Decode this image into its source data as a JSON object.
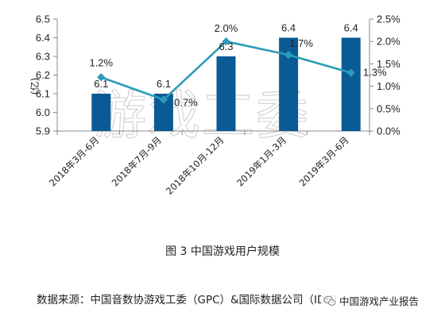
{
  "chart_data": {
    "type": "bar+line",
    "categories": [
      "2018年3月-6月",
      "2018年7月-9月",
      "2018年10月-12月",
      "2019年1月-3月",
      "2019年3月-6月"
    ],
    "series": [
      {
        "values": [
          6.1,
          6.1,
          6.3,
          6.4,
          6.4
        ],
        "type": "bar",
        "axis": "left",
        "color": "#0a5a96"
      },
      {
        "values": [
          1.2,
          0.7,
          2.0,
          1.7,
          1.3
        ],
        "type": "line",
        "axis": "right",
        "unit": "%",
        "color": "#2a9cb8"
      }
    ],
    "bar_labels": [
      "6.1",
      "6.1",
      "6.3",
      "6.4",
      "6.4"
    ],
    "line_labels": [
      "1.2%",
      "0.7%",
      "2.0%",
      "1.7%",
      "1.3%"
    ],
    "y_left": {
      "label": "(亿)",
      "ylim": [
        5.9,
        6.5
      ],
      "ticks": [
        "5.9",
        "6.0",
        "6.1",
        "6.2",
        "6.3",
        "6.4",
        "6.5"
      ]
    },
    "y_right": {
      "ylim": [
        0.0,
        2.5
      ],
      "ticks": [
        "0.0%",
        "0.5%",
        "1.0%",
        "1.5%",
        "2.0%",
        "2.5%"
      ]
    },
    "grid": false,
    "legend": "none"
  },
  "watermark": "游戏工委",
  "caption": "图 3  中国游戏用户规模",
  "source": "数据来源：中国音数协游戏工委（GPC）&国际数据公司（IDC）",
  "brand": "中国游戏产业报告",
  "brand_icon": "wechat-icon"
}
